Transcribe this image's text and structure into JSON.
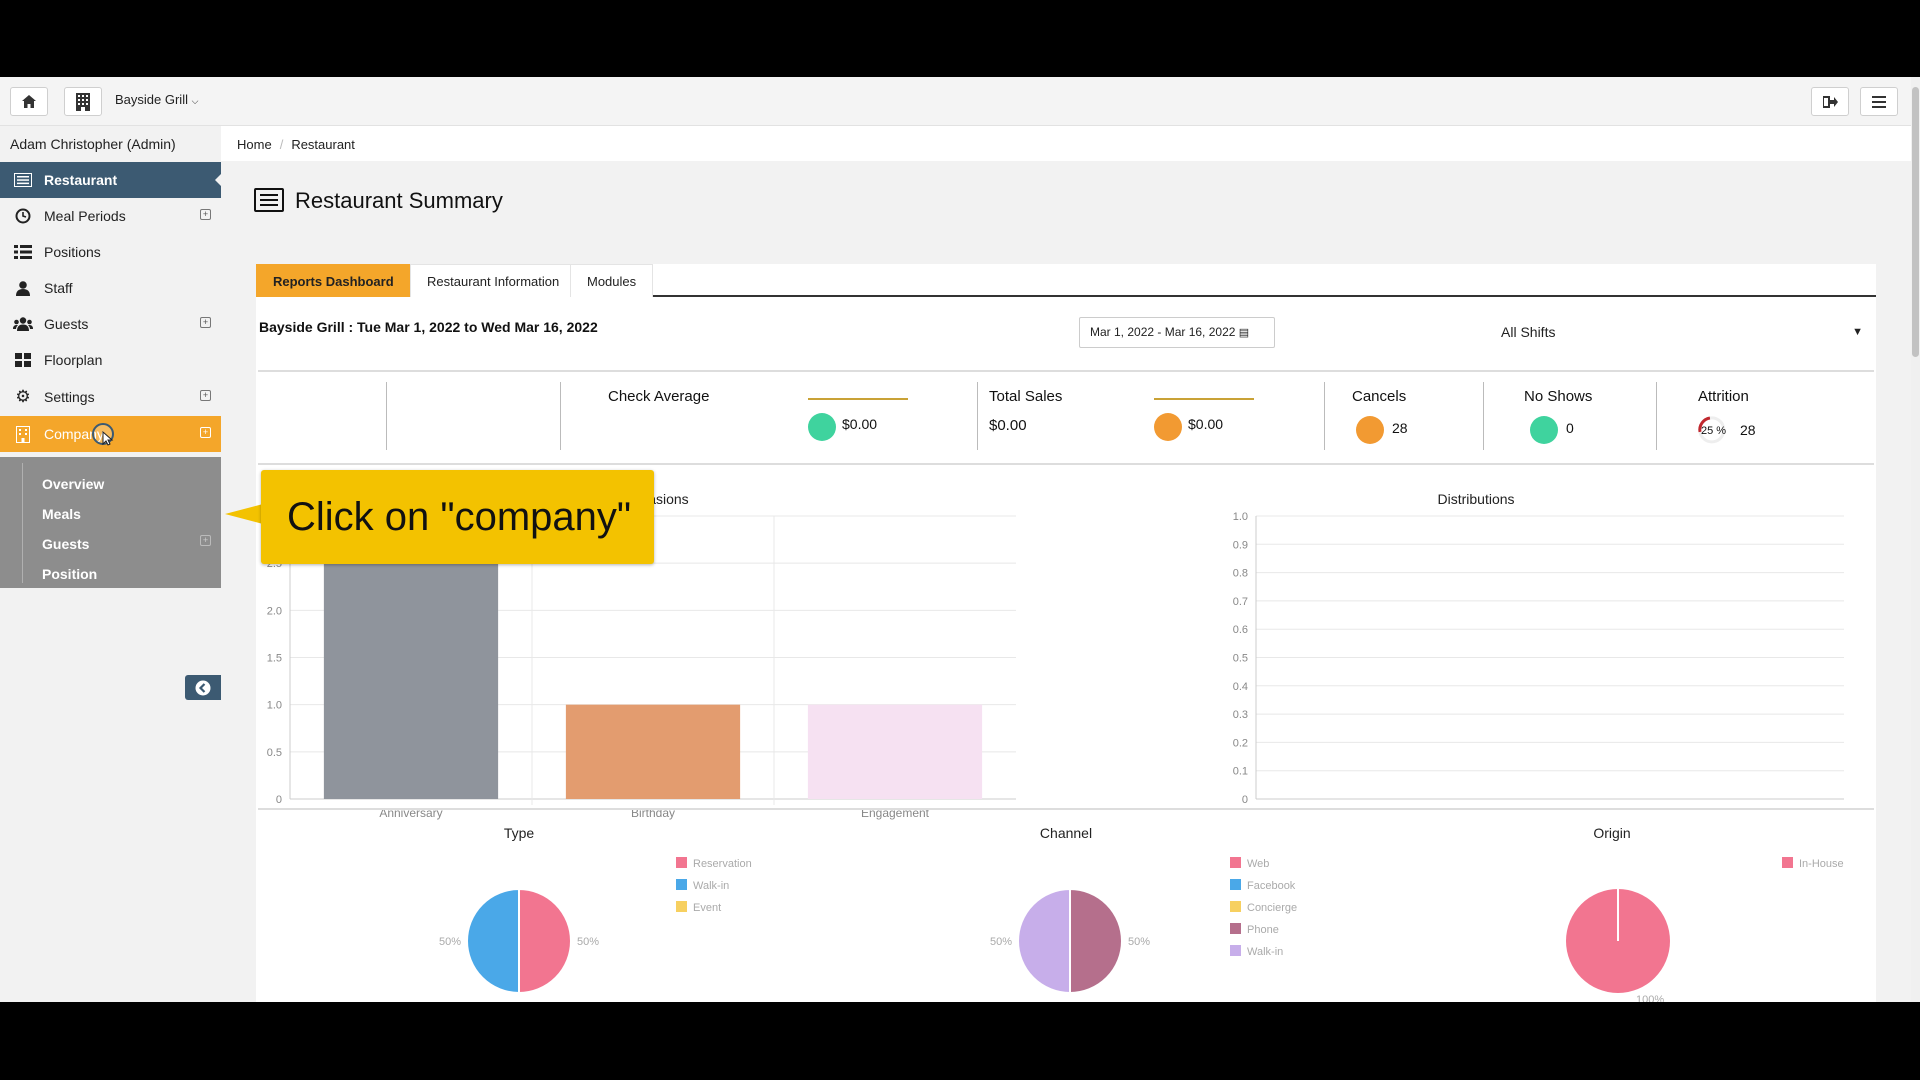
{
  "topbar": {
    "restaurant_name": "Bayside Grill",
    "home_icon": "home-icon",
    "building_icon": "building-icon",
    "logout_icon": "logout-icon",
    "menu_icon": "hamburger-icon"
  },
  "sidebar": {
    "user": "Adam Christopher (Admin)",
    "items": [
      {
        "label": "Restaurant",
        "icon": "list-icon"
      },
      {
        "label": "Meal Periods",
        "icon": "clock-icon"
      },
      {
        "label": "Positions",
        "icon": "bullet-list-icon"
      },
      {
        "label": "Staff",
        "icon": "user-icon"
      },
      {
        "label": "Guests",
        "icon": "users-icon"
      },
      {
        "label": "Floorplan",
        "icon": "grid-icon"
      },
      {
        "label": "Settings",
        "icon": "gear-icon"
      },
      {
        "label": "Company",
        "icon": "building-icon"
      }
    ],
    "company_submenu": [
      "Overview",
      "Meals",
      "Guests",
      "Position"
    ]
  },
  "breadcrumb": [
    "Home",
    "Restaurant"
  ],
  "page_title": "Restaurant Summary",
  "tabs": [
    "Reports Dashboard",
    "Restaurant Information",
    "Modules"
  ],
  "report": {
    "heading": "Bayside Grill : Tue Mar 1, 2022 to Wed Mar 16, 2022",
    "date_range": "Mar 1, 2022 - Mar 16, 2022",
    "shift": "All Shifts"
  },
  "kpis": {
    "check_average_label": "Check Average",
    "check_average_value": "$0.00",
    "total_sales_label": "Total Sales",
    "total_sales_value": "$0.00",
    "total_sales_trend": "$0.00",
    "cancels_label": "Cancels",
    "cancels_value": "28",
    "no_shows_label": "No Shows",
    "no_shows_value": "0",
    "attrition_label": "Attrition",
    "attrition_percent": "25 %",
    "attrition_value": "28"
  },
  "callout": "Click on \"company\"",
  "colors": {
    "nav_active": "#3c5a72",
    "accent_orange": "#f4a62a",
    "callout_yellow": "#f3c200"
  },
  "chart_data": [
    {
      "type": "bar",
      "title": "Occasions",
      "categories": [
        "Anniversary",
        "Birthday",
        "Engagement"
      ],
      "values": [
        3,
        1,
        1
      ],
      "colors": [
        "#8f949c",
        "#e39c6f",
        "#f6e1f2"
      ],
      "ylim": [
        0,
        3.0
      ],
      "yticks": [
        "0",
        "0.5",
        "1.0",
        "1.5",
        "2.0",
        "2.5",
        "3.0"
      ]
    },
    {
      "type": "bar",
      "title": "Distributions",
      "categories": [],
      "values": [],
      "ylim": [
        0,
        1.0
      ],
      "yticks": [
        "0",
        "0.1",
        "0.2",
        "0.3",
        "0.4",
        "0.5",
        "0.6",
        "0.7",
        "0.8",
        "0.9",
        "1.0"
      ]
    },
    {
      "type": "pie",
      "title": "Type",
      "legend": [
        "Reservation",
        "Walk-in",
        "Event"
      ],
      "legend_colors": [
        "#f27590",
        "#4aa8e8",
        "#f7d060"
      ],
      "slices": [
        {
          "name": "Reservation",
          "value": 50
        },
        {
          "name": "Walk-in",
          "value": 50
        }
      ],
      "labels": [
        "50%",
        "50%"
      ]
    },
    {
      "type": "pie",
      "title": "Channel",
      "legend": [
        "Web",
        "Facebook",
        "Concierge",
        "Phone",
        "Walk-in"
      ],
      "legend_colors": [
        "#f27590",
        "#4aa8e8",
        "#f7d060",
        "#b56f8c",
        "#c7aeea"
      ],
      "slices": [
        {
          "name": "Phone",
          "value": 50
        },
        {
          "name": "Walk-in",
          "value": 50
        }
      ],
      "labels": [
        "50%",
        "50%"
      ]
    },
    {
      "type": "pie",
      "title": "Origin",
      "legend": [
        "In-House"
      ],
      "legend_colors": [
        "#f27590"
      ],
      "slices": [
        {
          "name": "In-House",
          "value": 100
        }
      ],
      "labels": [
        "100%"
      ]
    }
  ]
}
